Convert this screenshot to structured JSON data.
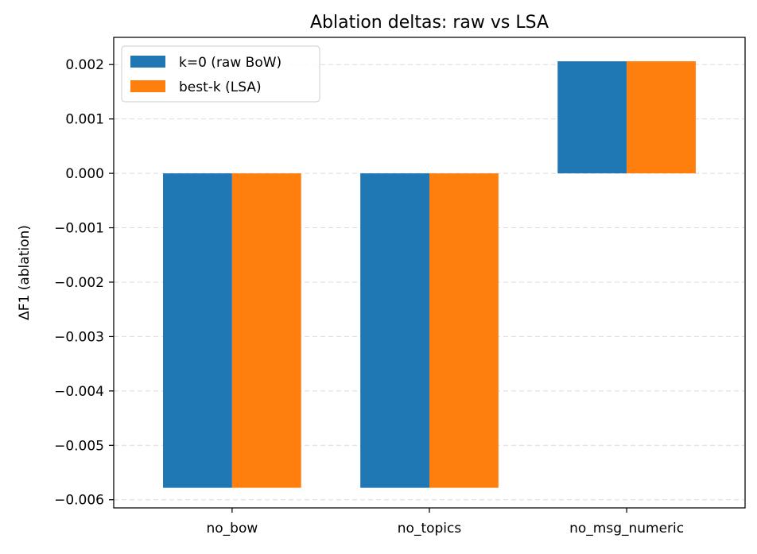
{
  "chart_data": {
    "type": "bar",
    "title": "Ablation deltas: raw vs LSA",
    "xlabel": "",
    "ylabel": "ΔF1 (ablation)",
    "categories": [
      "no_bow",
      "no_topics",
      "no_msg_numeric"
    ],
    "series": [
      {
        "name": "k=0 (raw BoW)",
        "color": "#1f77b4",
        "values": [
          -0.00578,
          -0.00578,
          0.00206
        ]
      },
      {
        "name": "best-k (LSA)",
        "color": "#ff7f0e",
        "values": [
          -0.00578,
          -0.00578,
          0.00206
        ]
      }
    ],
    "ylim": [
      -0.00615,
      0.0025
    ],
    "yticks": [
      0.002,
      0.001,
      0.0,
      -0.001,
      -0.002,
      -0.003,
      -0.004,
      -0.005,
      -0.006
    ],
    "ytick_labels": [
      "0.002",
      "0.001",
      "0.000",
      "−0.001",
      "−0.002",
      "−0.003",
      "−0.004",
      "−0.005",
      "−0.006"
    ],
    "grid": "y-dashed",
    "legend_position": "top-left"
  }
}
